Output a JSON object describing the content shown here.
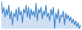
{
  "chart_data": {
    "type": "line",
    "color": "#3f86cc",
    "tick_labels": false,
    "values": [
      90,
      60,
      75,
      50,
      70,
      55,
      80,
      45,
      65,
      30,
      60,
      50,
      70,
      40,
      75,
      55,
      65,
      35,
      70,
      60,
      80,
      50,
      75,
      45,
      70,
      55,
      65,
      50,
      85,
      40,
      70,
      60,
      75,
      45,
      65,
      55,
      80,
      50,
      60,
      40,
      70,
      55,
      75,
      20,
      60,
      45,
      70,
      35,
      55,
      50,
      65,
      30,
      60,
      45,
      55,
      40,
      50,
      35,
      45,
      30,
      40,
      25,
      35,
      20,
      30
    ]
  }
}
